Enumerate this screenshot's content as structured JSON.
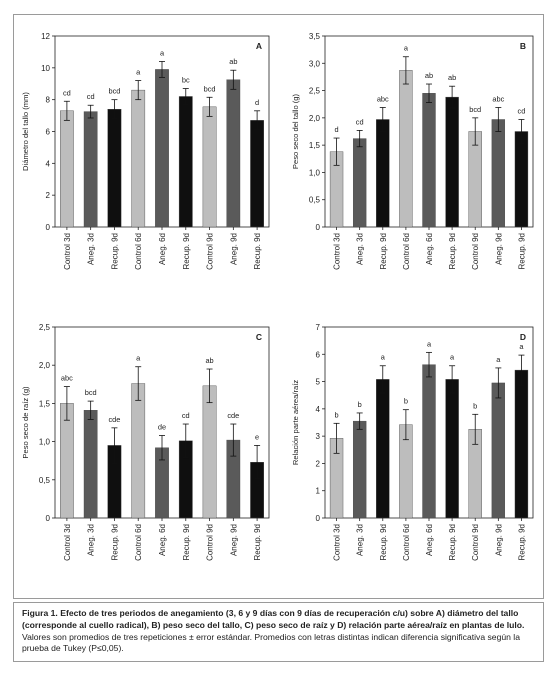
{
  "figure": {
    "caption_label": "Figura 1.",
    "caption_bold": "Efecto de tres periodos de anegamiento (3, 6 y 9 días con 9 días de recuperación c/u) sobre A) diámetro del tallo (corresponde al cuello radical), B) peso seco del tallo, C) peso seco de raíz y D) relación parte aérea/raíz en plantas de lulo.",
    "caption_rest": "Valores son promedios de tres repeticiones ± error estándar. Promedios con letras distintas indican diferencia significativa según la prueba de Tukey (P≤0,05)."
  },
  "chart_data": [
    {
      "type": "bar",
      "panel": "A",
      "title": "",
      "xlabel": "",
      "ylabel": "Diámetro del tallo (mm)",
      "ylim": [
        0,
        12
      ],
      "yticks": [
        "0",
        "2",
        "4",
        "6",
        "8",
        "10",
        "12"
      ],
      "categories": [
        "Control 3d",
        "Aneg. 3d",
        "Recup. 9d",
        "Control 6d",
        "Aneg. 6d",
        "Recup. 9d",
        "Control 9d",
        "Aneg. 9d",
        "Recup. 9d"
      ],
      "values": [
        7.3,
        7.25,
        7.4,
        8.6,
        9.9,
        8.2,
        7.55,
        9.25,
        6.7
      ],
      "errors": [
        0.6,
        0.4,
        0.6,
        0.6,
        0.5,
        0.5,
        0.6,
        0.6,
        0.6
      ],
      "letters": [
        "cd",
        "cd",
        "bcd",
        "a",
        "a",
        "bc",
        "bcd",
        "ab",
        "d"
      ],
      "colors": [
        "#bdbdbd",
        "#5a5a5a",
        "#0f0f0f",
        "#bdbdbd",
        "#5a5a5a",
        "#0f0f0f",
        "#bdbdbd",
        "#5a5a5a",
        "#0f0f0f"
      ],
      "grid": false
    },
    {
      "type": "bar",
      "panel": "B",
      "title": "",
      "xlabel": "",
      "ylabel": "Peso seco del tallo (g)",
      "ylim": [
        0,
        3.5
      ],
      "yticks": [
        "0",
        "0,5",
        "1,0",
        "1,5",
        "2,0",
        "2,5",
        "3,0",
        "3,5"
      ],
      "categories": [
        "Control 3d",
        "Aneg. 3d",
        "Recup. 9d",
        "Control 6d",
        "Aneg. 6d",
        "Recup. 9d",
        "Control 9d",
        "Aneg. 9d",
        "Recup. 9d"
      ],
      "values": [
        1.38,
        1.62,
        1.97,
        2.87,
        2.45,
        2.38,
        1.75,
        1.97,
        1.75
      ],
      "errors": [
        0.25,
        0.15,
        0.22,
        0.25,
        0.17,
        0.2,
        0.25,
        0.22,
        0.22
      ],
      "letters": [
        "d",
        "cd",
        "abc",
        "a",
        "ab",
        "ab",
        "bcd",
        "abc",
        "cd"
      ],
      "colors": [
        "#bdbdbd",
        "#5a5a5a",
        "#0f0f0f",
        "#bdbdbd",
        "#5a5a5a",
        "#0f0f0f",
        "#bdbdbd",
        "#5a5a5a",
        "#0f0f0f"
      ],
      "grid": false
    },
    {
      "type": "bar",
      "panel": "C",
      "title": "",
      "xlabel": "",
      "ylabel": "Peso seco de raíz (g)",
      "ylim": [
        0,
        2.5
      ],
      "yticks": [
        "0",
        "0,5",
        "1,0",
        "1,5",
        "2,0",
        "2,5"
      ],
      "categories": [
        "Control 3d",
        "Aneg. 3d",
        "Recup. 9d",
        "Control 6d",
        "Aneg. 6d",
        "Recup. 9d",
        "Control 9d",
        "Aneg. 9d",
        "Recup. 9d"
      ],
      "values": [
        1.5,
        1.41,
        0.95,
        1.76,
        0.92,
        1.01,
        1.73,
        1.02,
        0.73
      ],
      "errors": [
        0.22,
        0.12,
        0.23,
        0.22,
        0.16,
        0.22,
        0.22,
        0.21,
        0.22
      ],
      "letters": [
        "abc",
        "bcd",
        "cde",
        "a",
        "de",
        "cd",
        "ab",
        "cde",
        "e"
      ],
      "colors": [
        "#bdbdbd",
        "#5a5a5a",
        "#0f0f0f",
        "#bdbdbd",
        "#5a5a5a",
        "#0f0f0f",
        "#bdbdbd",
        "#5a5a5a",
        "#0f0f0f"
      ],
      "grid": false
    },
    {
      "type": "bar",
      "panel": "D",
      "title": "",
      "xlabel": "",
      "ylabel": "Relación parte aérea/raíz",
      "ylim": [
        0,
        7
      ],
      "yticks": [
        "0",
        "1",
        "2",
        "3",
        "4",
        "5",
        "6",
        "7"
      ],
      "categories": [
        "Control 3d",
        "Aneg. 3d",
        "Recup. 9d",
        "Control 6d",
        "Aneg. 6d",
        "Recup. 9d",
        "Control 9d",
        "Aneg. 9d",
        "Recup. 9d"
      ],
      "values": [
        2.92,
        3.55,
        5.08,
        3.42,
        5.62,
        5.08,
        3.25,
        4.95,
        5.42
      ],
      "errors": [
        0.55,
        0.3,
        0.5,
        0.55,
        0.45,
        0.5,
        0.55,
        0.55,
        0.55
      ],
      "letters": [
        "b",
        "b",
        "a",
        "b",
        "a",
        "a",
        "b",
        "a",
        "a"
      ],
      "colors": [
        "#bdbdbd",
        "#5a5a5a",
        "#0f0f0f",
        "#bdbdbd",
        "#5a5a5a",
        "#0f0f0f",
        "#bdbdbd",
        "#5a5a5a",
        "#0f0f0f"
      ],
      "grid": false
    }
  ]
}
